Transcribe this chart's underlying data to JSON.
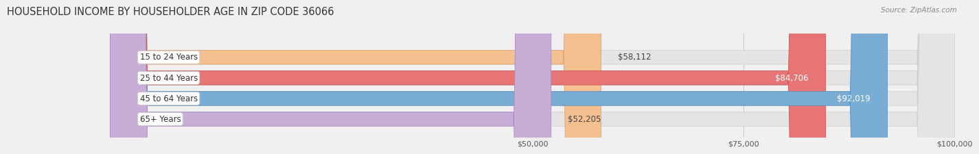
{
  "title": "HOUSEHOLD INCOME BY HOUSEHOLDER AGE IN ZIP CODE 36066",
  "source": "Source: ZipAtlas.com",
  "categories": [
    "15 to 24 Years",
    "25 to 44 Years",
    "45 to 64 Years",
    "65+ Years"
  ],
  "values": [
    58112,
    84706,
    92019,
    52205
  ],
  "labels": [
    "$58,112",
    "$84,706",
    "$92,019",
    "$52,205"
  ],
  "bar_colors": [
    "#f5c090",
    "#e87575",
    "#7aadd4",
    "#c8add6"
  ],
  "bar_edge_colors": [
    "#e0a070",
    "#cc5555",
    "#5590c0",
    "#aa88c0"
  ],
  "label_colors": [
    "#444444",
    "#ffffff",
    "#ffffff",
    "#444444"
  ],
  "x_min": 0,
  "x_max": 100000,
  "x_ticks": [
    50000,
    75000,
    100000
  ],
  "x_tick_labels": [
    "$50,000",
    "$75,000",
    "$100,000"
  ],
  "background_color": "#f0f0f0",
  "bar_bg_color": "#e4e4e4",
  "title_fontsize": 10.5,
  "source_fontsize": 7.5,
  "label_fontsize": 8.5,
  "category_fontsize": 8.5,
  "tick_fontsize": 8,
  "bar_height": 0.68,
  "fig_width": 14.06,
  "fig_height": 2.33
}
